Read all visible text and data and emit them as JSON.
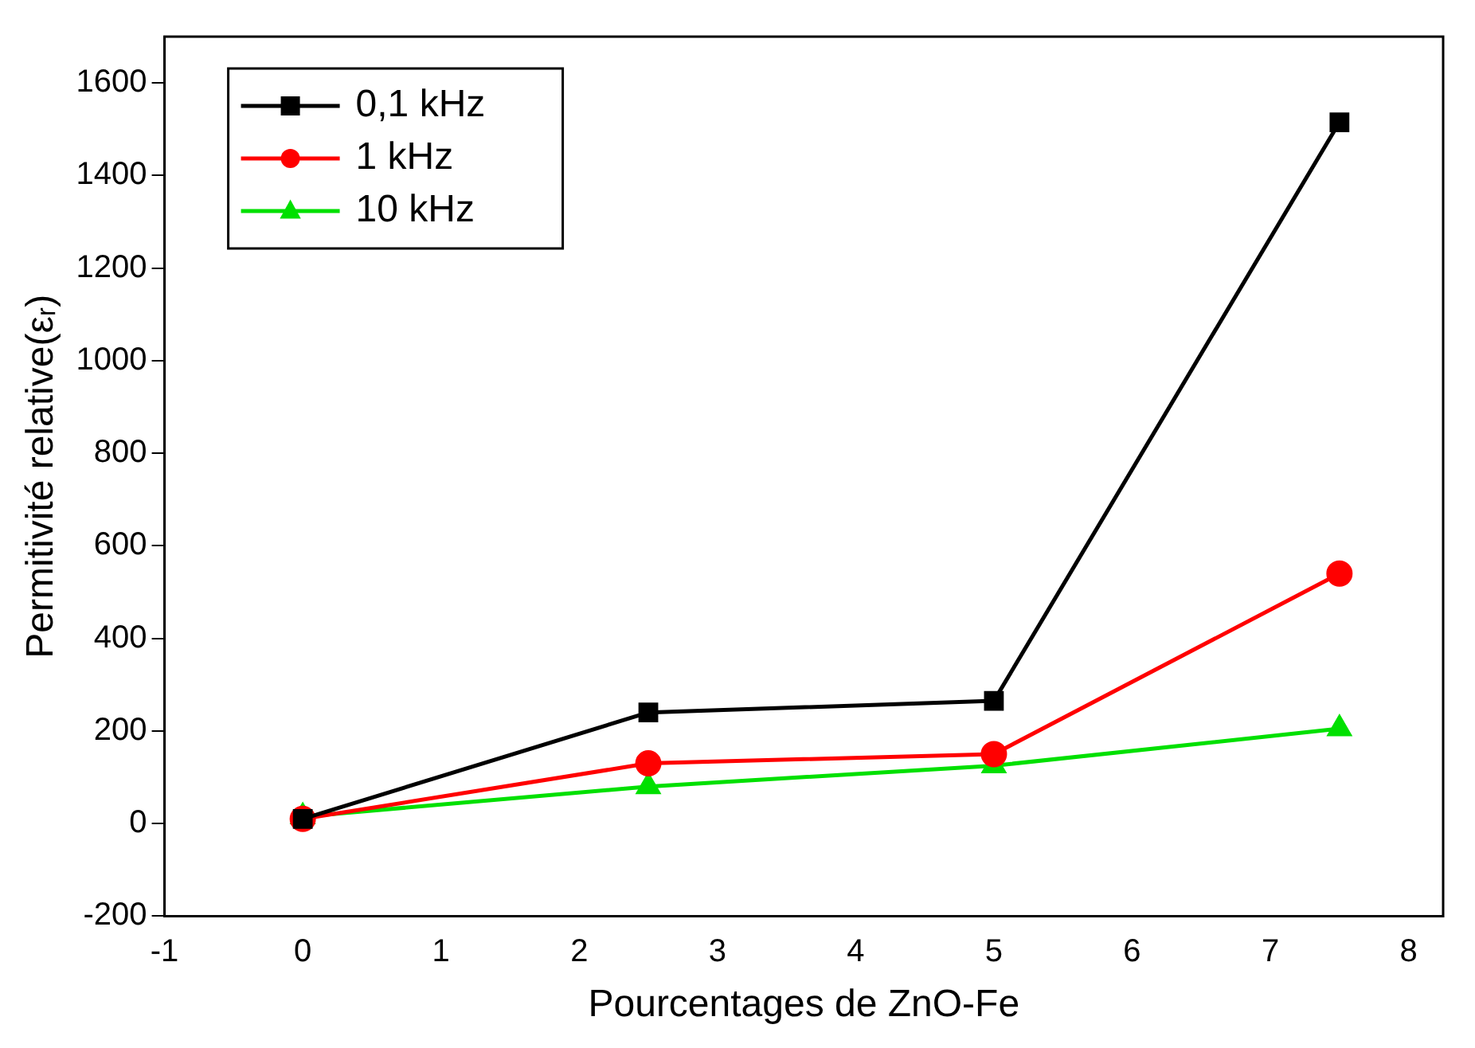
{
  "chart_data": {
    "type": "line",
    "xlabel": "Pourcentages de ZnO-Fe",
    "ylabel": "Permitivité relative(εᵣ)",
    "x": [
      0,
      2.5,
      5,
      7.5
    ],
    "xlim": [
      -1,
      8.25
    ],
    "xticks": [
      -1,
      0,
      1,
      2,
      3,
      4,
      5,
      6,
      7,
      8
    ],
    "ylim": [
      -200,
      1700
    ],
    "yticks": [
      -200,
      0,
      200,
      400,
      600,
      800,
      1000,
      1200,
      1400,
      1600
    ],
    "grid": false,
    "legend": "top left",
    "line_style": "solid",
    "series": [
      {
        "name": "0,1 kHz",
        "color": "#000000",
        "marker": "square",
        "values": [
          10,
          240,
          265,
          1515
        ]
      },
      {
        "name": "1 kHz",
        "color": "#ff0000",
        "marker": "circle",
        "values": [
          10,
          130,
          150,
          540
        ]
      },
      {
        "name": "10 kHz",
        "color": "#00e000",
        "marker": "triangle",
        "values": [
          15,
          80,
          125,
          205
        ]
      }
    ]
  }
}
